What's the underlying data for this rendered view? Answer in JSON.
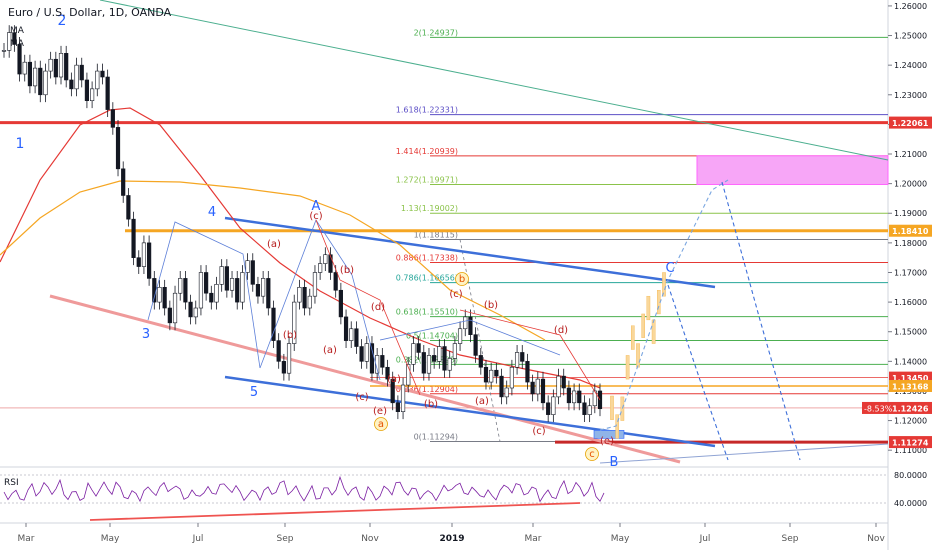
{
  "header": {
    "title": "Euro / U.S. Dollar, 1D, OANDA",
    "ma_labels": [
      "MA",
      "MA"
    ]
  },
  "rsi": {
    "label": "RSI",
    "ticks": [
      "80.0000",
      "40.0000"
    ]
  },
  "colors": {
    "red": "#e53935",
    "orange": "#f5a623",
    "blue": "#2962ff",
    "green": "#4caf50",
    "teal": "#26a69a",
    "magenta": "#ff66ff",
    "purple": "#5c4fc6",
    "gray": "#787b86"
  },
  "chart_data": {
    "type": "line",
    "symbol": "EURUSD",
    "timeframe": "1D",
    "x_tick_labels": [
      "Mar",
      "May",
      "Jul",
      "Sep",
      "Nov",
      "2019",
      "Mar",
      "May",
      "Jul",
      "Sep",
      "Nov"
    ],
    "y_tick_labels": [
      "1.26000",
      "1.25000",
      "1.24000",
      "1.23000",
      "1.22000",
      "1.21000",
      "1.20000",
      "1.19000",
      "1.18000",
      "1.17000",
      "1.16000",
      "1.15000",
      "1.14000",
      "1.13000",
      "1.12000",
      "1.11000"
    ],
    "ylim": [
      1.105,
      1.262
    ],
    "price_tags": [
      {
        "value": 1.22061,
        "label": "1.22061",
        "color": "#e53935"
      },
      {
        "value": 1.1841,
        "label": "1.18410",
        "color": "#f5a623"
      },
      {
        "value": 1.1345,
        "label": "1.13450",
        "color": "#e53935"
      },
      {
        "value": 1.13168,
        "label": "1.13168",
        "color": "#f5a623"
      },
      {
        "value": 1.12426,
        "label": "1.12426",
        "color": "#e53935"
      },
      {
        "value": 1.11274,
        "label": "1.11274",
        "color": "#e53935"
      }
    ],
    "last_change": "-8.53%",
    "fib_levels": [
      {
        "label": "2(1.24937)",
        "value": 1.24937,
        "color": "#4caf50"
      },
      {
        "label": "1.618(1.22331)",
        "value": 1.22331,
        "color": "#5c4fc6"
      },
      {
        "label": "1.414(1.20939)",
        "value": 1.20939,
        "color": "#e53935"
      },
      {
        "label": "1.272(1.19971)",
        "value": 1.19971,
        "color": "#8bc34a"
      },
      {
        "label": "1.13(1.19002)",
        "value": 1.19002,
        "color": "#8bc34a"
      },
      {
        "label": "1(1.18115)",
        "value": 1.18115,
        "color": "#787b86"
      },
      {
        "label": "0.886(1.17338)",
        "value": 1.17338,
        "color": "#e53935"
      },
      {
        "label": "0.786(1.16656)",
        "value": 1.16656,
        "color": "#26a69a"
      },
      {
        "label": "0.618(1.15510)",
        "value": 1.1551,
        "color": "#4caf50"
      },
      {
        "label": "0.5(1.14704)",
        "value": 1.14704,
        "color": "#4caf50"
      },
      {
        "label": "0.382(1.13898)",
        "value": 1.13898,
        "color": "#4caf50"
      },
      {
        "label": "0.236(1.12904)",
        "value": 1.12904,
        "color": "#e53935"
      },
      {
        "label": "0(1.11294)",
        "value": 1.11294,
        "color": "#787b86"
      }
    ],
    "price_path": [
      1.245,
      1.251,
      1.247,
      1.237,
      1.241,
      1.233,
      1.239,
      1.23,
      1.238,
      1.242,
      1.236,
      1.244,
      1.235,
      1.232,
      1.24,
      1.235,
      1.228,
      1.232,
      1.238,
      1.236,
      1.225,
      1.219,
      1.205,
      1.196,
      1.188,
      1.175,
      1.172,
      1.18,
      1.168,
      1.16,
      1.165,
      1.158,
      1.153,
      1.163,
      1.168,
      1.16,
      1.155,
      1.158,
      1.17,
      1.163,
      1.16,
      1.166,
      1.172,
      1.164,
      1.168,
      1.16,
      1.17,
      1.174,
      1.166,
      1.162,
      1.168,
      1.158,
      1.147,
      1.14,
      1.136,
      1.146,
      1.16,
      1.165,
      1.158,
      1.162,
      1.17,
      1.173,
      1.176,
      1.17,
      1.164,
      1.155,
      1.147,
      1.151,
      1.145,
      1.14,
      1.146,
      1.136,
      1.142,
      1.138,
      1.134,
      1.126,
      1.123,
      1.132,
      1.139,
      1.146,
      1.143,
      1.136,
      1.142,
      1.14,
      1.145,
      1.137,
      1.141,
      1.146,
      1.151,
      1.155,
      1.149,
      1.142,
      1.138,
      1.133,
      1.137,
      1.135,
      1.128,
      1.131,
      1.138,
      1.143,
      1.14,
      1.133,
      1.129,
      1.134,
      1.126,
      1.122,
      1.128,
      1.135,
      1.131,
      1.126,
      1.13,
      1.126,
      1.122,
      1.125,
      1.13,
      1.124
    ],
    "projection_path": [
      1.1243,
      1.118,
      1.124,
      1.138,
      1.148,
      1.142,
      1.152,
      1.158,
      1.15,
      1.16,
      1.166
    ],
    "wave_labels": [
      {
        "text": "1",
        "color": "#2962ff"
      },
      {
        "text": "2",
        "color": "#2962ff"
      },
      {
        "text": "3",
        "color": "#2962ff"
      },
      {
        "text": "4",
        "color": "#2962ff"
      },
      {
        "text": "5",
        "color": "#2962ff"
      },
      {
        "text": "A",
        "color": "#2962ff"
      },
      {
        "text": "B",
        "color": "#2962ff"
      },
      {
        "text": "C",
        "color": "#2962ff"
      },
      {
        "text": "(a)",
        "color": "#b71c1c"
      },
      {
        "text": "(b)",
        "color": "#b71c1c"
      },
      {
        "text": "(c)",
        "color": "#b71c1c"
      },
      {
        "text": "(a)",
        "color": "#b71c1c"
      },
      {
        "text": "(b)",
        "color": "#b71c1c"
      },
      {
        "text": "(c)",
        "color": "#b71c1c"
      },
      {
        "text": "(d)",
        "color": "#b71c1c"
      },
      {
        "text": "(e)",
        "color": "#b71c1c"
      },
      {
        "text": "(a)",
        "color": "#b71c1c"
      },
      {
        "text": "(b)",
        "color": "#b71c1c"
      },
      {
        "text": "(c)",
        "color": "#b71c1c"
      },
      {
        "text": "(a)",
        "color": "#b71c1c"
      },
      {
        "text": "(b)",
        "color": "#b71c1c"
      },
      {
        "text": "(c)",
        "color": "#b71c1c"
      },
      {
        "text": "(d)",
        "color": "#b71c1c"
      },
      {
        "text": "(e)",
        "color": "#b71c1c"
      },
      {
        "text": "a",
        "color": "#e65100"
      },
      {
        "text": "b",
        "color": "#e65100"
      },
      {
        "text": "c",
        "color": "#e65100"
      }
    ]
  }
}
